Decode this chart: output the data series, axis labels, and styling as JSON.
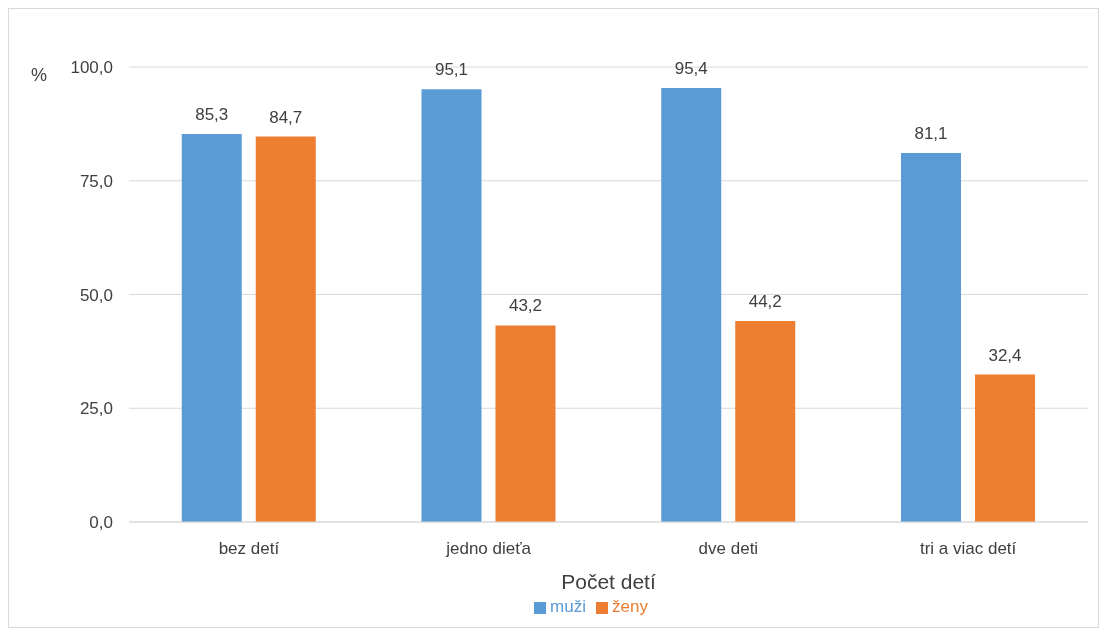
{
  "chart_data": {
    "type": "bar",
    "ylabel": "%",
    "xlabel": "Počet detí",
    "categories": [
      "bez detí",
      "jedno dieťa",
      "dve deti",
      "tri a viac detí"
    ],
    "series": [
      {
        "name": "muži",
        "color": "#5b9bd5",
        "values": [
          85.3,
          95.1,
          95.4,
          81.1
        ],
        "value_labels": [
          "85,3",
          "95,1",
          "95,4",
          "81,1"
        ]
      },
      {
        "name": "ženy",
        "color": "#ed7d31",
        "values": [
          84.7,
          43.2,
          44.2,
          32.4
        ],
        "value_labels": [
          "84,7",
          "43,2",
          "44,2",
          "32,4"
        ]
      }
    ],
    "ylim": [
      0,
      100
    ],
    "yticks": [
      {
        "value": 0,
        "label": "0,0"
      },
      {
        "value": 25,
        "label": "25,0"
      },
      {
        "value": 50,
        "label": "50,0"
      },
      {
        "value": 75,
        "label": "75,0"
      },
      {
        "value": 100,
        "label": "100,0"
      }
    ],
    "grid": "y",
    "legend": "bottom"
  }
}
